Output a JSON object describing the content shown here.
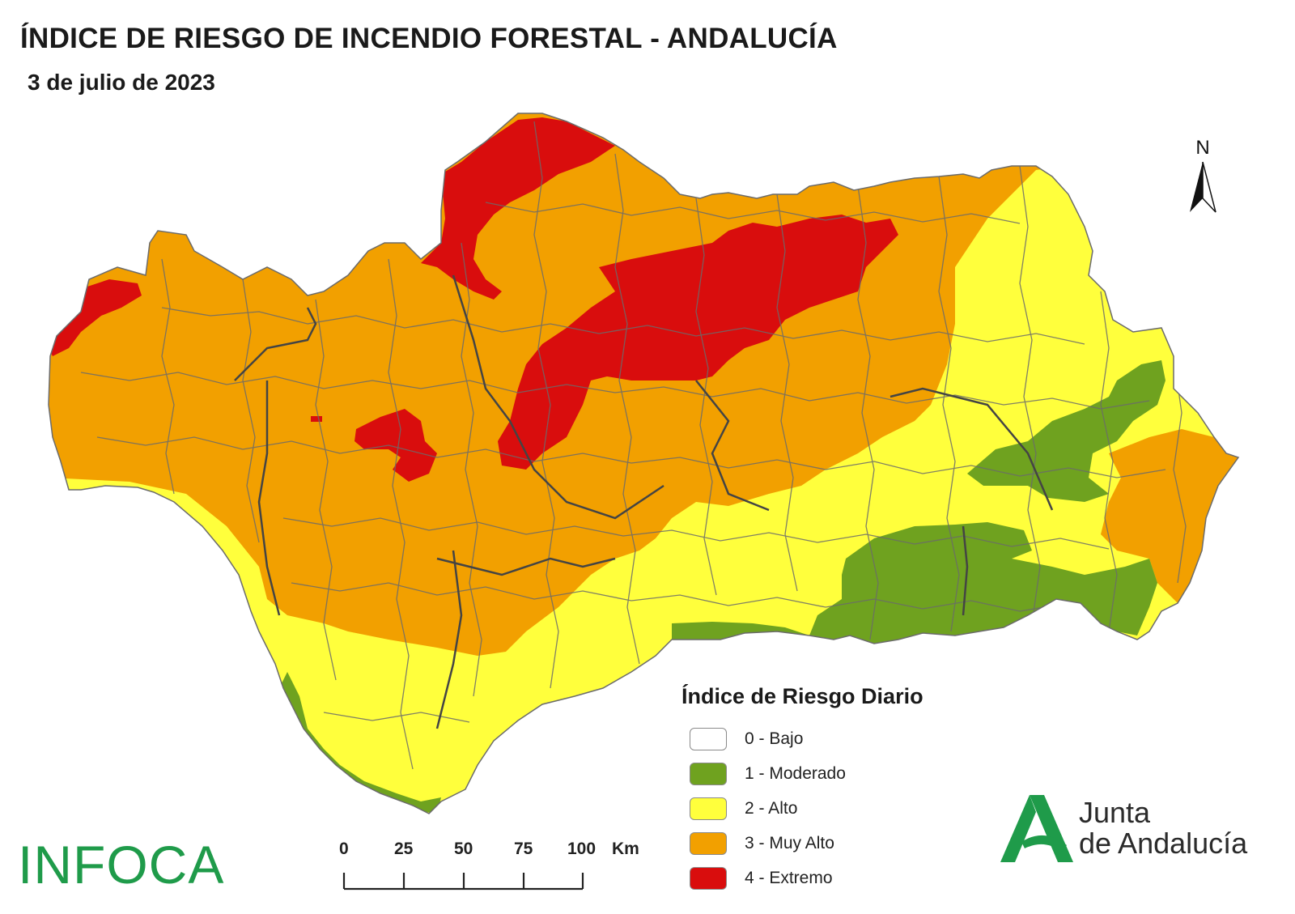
{
  "title": "ÍNDICE DE RIESGO DE INCENDIO FORESTAL - ANDALUCÍA",
  "date": "3 de julio de 2023",
  "north_label": "N",
  "legend": {
    "title": "Índice de Riesgo Diario",
    "items": [
      {
        "label": "0 - Bajo",
        "color": "#ffffff"
      },
      {
        "label": "1 - Moderado",
        "color": "#6fa21f"
      },
      {
        "label": "2 - Alto",
        "color": "#ffff3c"
      },
      {
        "label": "3 - Muy Alto",
        "color": "#f2a000"
      },
      {
        "label": "4 - Extremo",
        "color": "#d90d0d"
      }
    ]
  },
  "scale_bar": {
    "ticks": [
      "0",
      "25",
      "50",
      "75",
      "100"
    ],
    "unit": "Km"
  },
  "logos": {
    "infoca": "INFOCA",
    "junta_line1": "Junta",
    "junta_line2": "de Andalucía"
  },
  "colors": {
    "bajo": "#ffffff",
    "moderado": "#6fa21f",
    "alto": "#ffff3c",
    "muy_alto": "#f2a000",
    "extremo": "#d90d0d",
    "boundary": "#5a5a5a",
    "junta_green": "#1f9b4a"
  }
}
